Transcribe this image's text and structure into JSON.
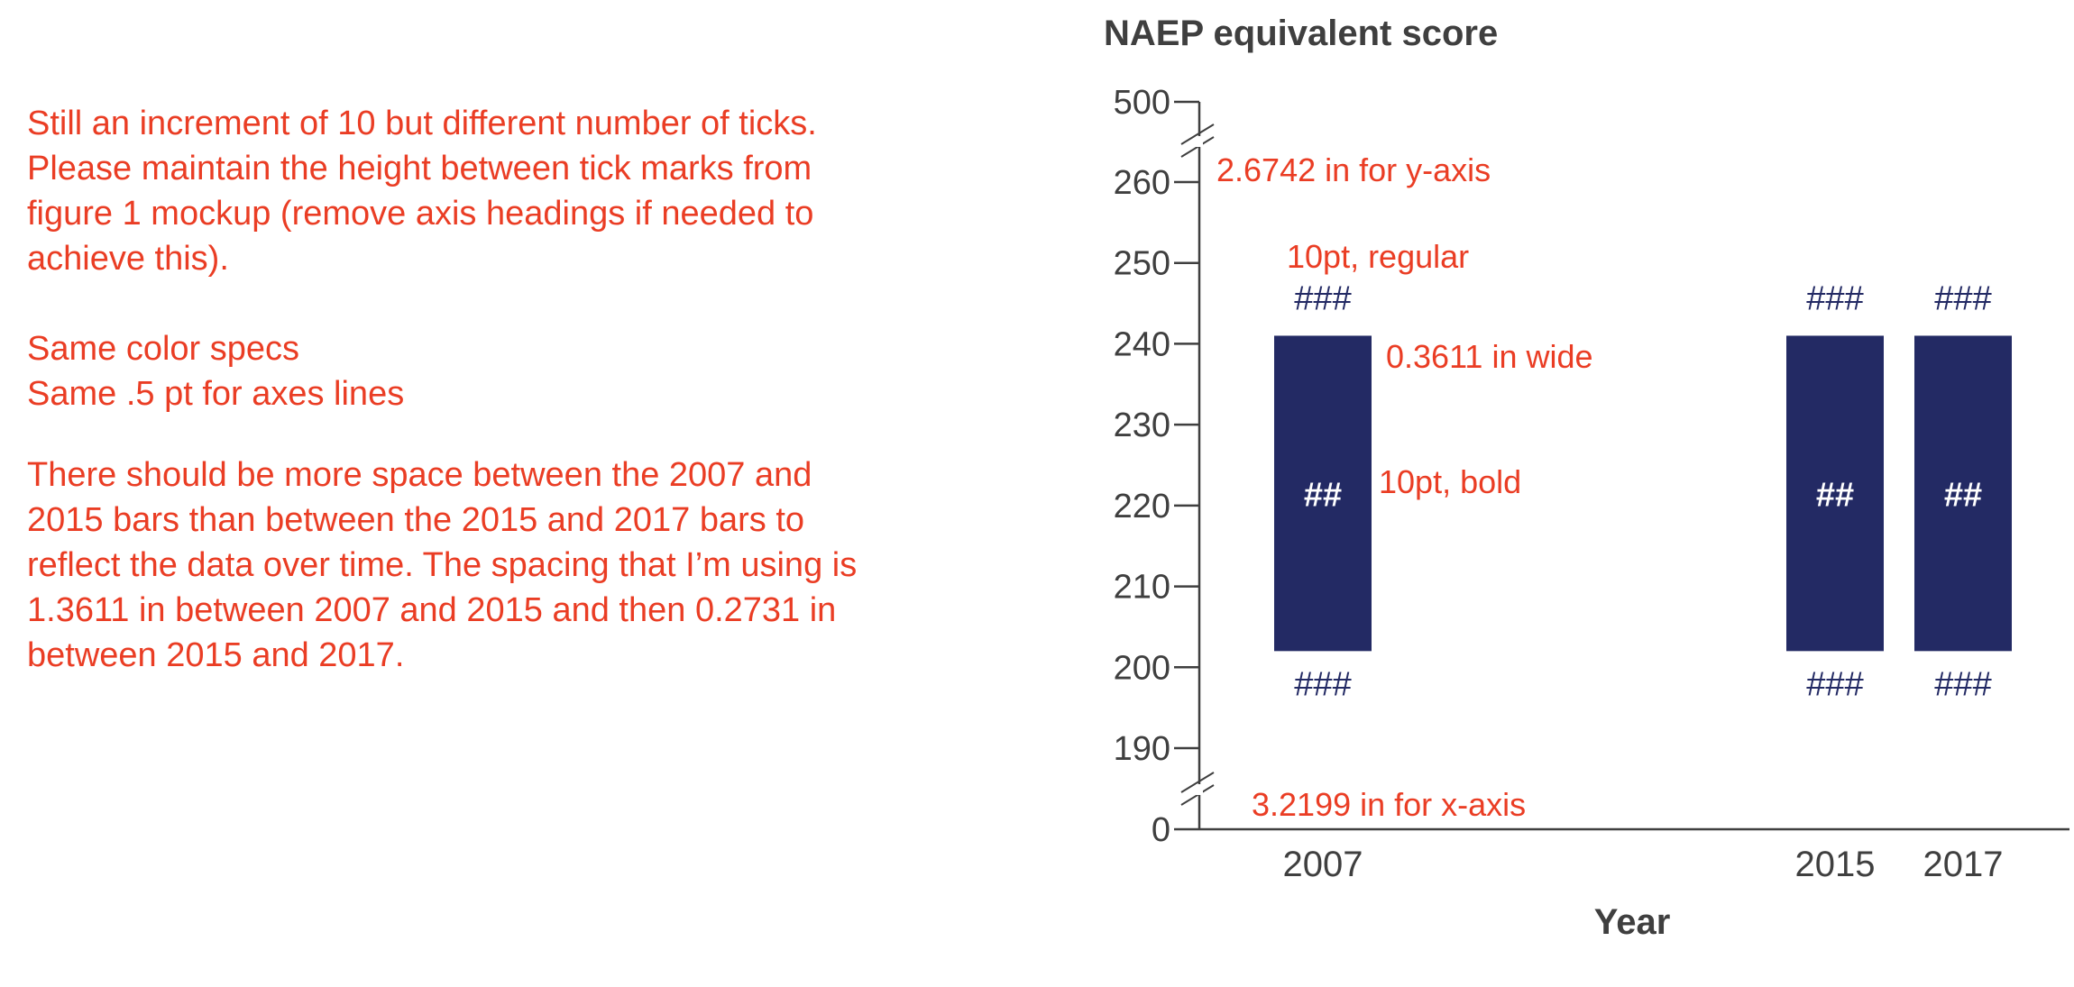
{
  "notes": {
    "line1": "Still an increment of 10 but different number of ticks.",
    "line2": "Please maintain the height between tick marks from",
    "line3": "figure 1 mockup (remove axis headings if needed to",
    "line4": "achieve this).",
    "line5": "Same color specs",
    "line6": "Same .5 pt for axes lines",
    "line7": "There should be more space between the 2007 and",
    "line8": "2015 bars than between the 2015 and 2017 bars to",
    "line9": "reflect the data over time. The spacing that I’m using is",
    "line10": "1.3611 in between 2007 and 2015 and then 0.2731 in",
    "line11": "between 2015 and 2017."
  },
  "annotations": {
    "yaxis": "2.6742 in for y-axis",
    "top_label": "10pt, regular",
    "bar_width": "0.3611 in wide",
    "inner_label": "10pt, bold",
    "xaxis": "3.2199 in for x-axis"
  },
  "colors": {
    "bar": "#232a64",
    "annotation": "#ea3d24",
    "axis": "#3f3f3f"
  },
  "chart_data": {
    "type": "bar",
    "title": "NAEP equivalent score",
    "xlabel": "Year",
    "ylabel": "",
    "categories": [
      "2007",
      "2015",
      "2017"
    ],
    "x": [
      2007,
      2015,
      2017
    ],
    "yticks": [
      0,
      190,
      200,
      210,
      220,
      230,
      240,
      250,
      260,
      500
    ],
    "axis_breaks": [
      "0-190",
      "260-500"
    ],
    "grid": false,
    "series": [
      {
        "low": 202,
        "high": 241,
        "top_label": "###",
        "bottom_label": "###",
        "inner_label": "##"
      },
      {
        "low": 202,
        "high": 241,
        "top_label": "###",
        "bottom_label": "###",
        "inner_label": "##"
      },
      {
        "low": 202,
        "high": 241,
        "top_label": "###",
        "bottom_label": "###",
        "inner_label": "##"
      }
    ]
  }
}
